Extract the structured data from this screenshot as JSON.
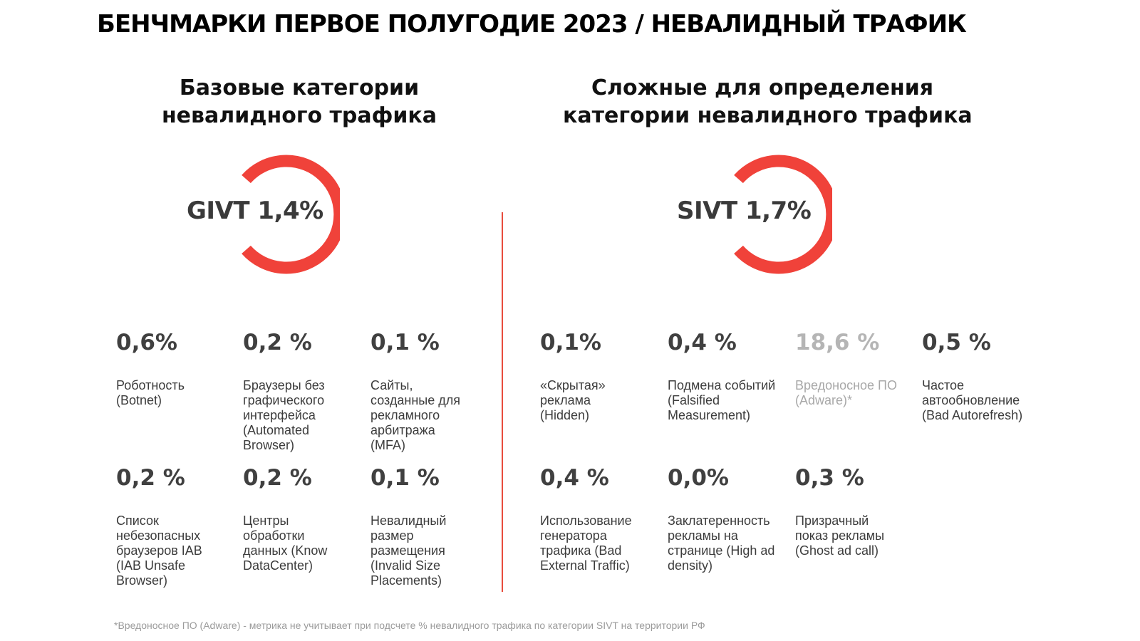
{
  "title": "БЕНЧМАРКИ ПЕРВОЕ ПОЛУГОДИЕ 2023 / НЕВАЛИДНЫЙ ТРАФИК",
  "left": {
    "heading": [
      "Базовые категории",
      "невалидного трафика"
    ],
    "total_label": "GIVT 1,4%",
    "metrics": [
      {
        "value": "0,6%",
        "label": [
          "Роботность",
          "(Botnet)"
        ]
      },
      {
        "value": "0,2 %",
        "label": [
          "Браузеры без",
          "графического",
          "интерфейса",
          "(Automated",
          "Browser)"
        ]
      },
      {
        "value": "0,1 %",
        "label": [
          "Сайты,",
          "созданные для",
          "рекламного",
          "арбитража",
          "(MFA)"
        ]
      },
      {
        "value": "0,2 %",
        "label": [
          "Список",
          "небезопасных",
          "браузеров IAB",
          "(IAB Unsafe",
          "Browser)"
        ]
      },
      {
        "value": "0,2 %",
        "label": [
          "Центры",
          "обработки",
          "данных (Know",
          "DataCenter)"
        ]
      },
      {
        "value": "0,1 %",
        "label": [
          "Невалидный",
          "размер",
          "размещения",
          "(Invalid Size",
          "Placements)"
        ]
      }
    ]
  },
  "right": {
    "heading": [
      "Сложные для определения",
      "категории невалидного трафика"
    ],
    "total_label": "SIVT 1,7%",
    "metrics": [
      {
        "value": "0,1%",
        "label": [
          "«Скрытая»",
          "реклама",
          "(Hidden)"
        ]
      },
      {
        "value": "0,4 %",
        "label": [
          "Подмена событий",
          "(Falsified",
          "Measurement)"
        ]
      },
      {
        "value": "18,6 %",
        "label": [
          "Вредоносное ПО",
          "(Adware)*"
        ],
        "muted": true
      },
      {
        "value": "0,5 %",
        "label": [
          "Частое",
          "автообновление",
          "(Bad Autorefresh)"
        ]
      },
      {
        "value": "0,4 %",
        "label": [
          "Использование",
          "генератора",
          "трафика (Bad",
          "External Traffic)"
        ]
      },
      {
        "value": "0,0%",
        "label": [
          "Заклатеренность",
          "рекламы на",
          "странице (High ad",
          "density)"
        ]
      },
      {
        "value": "0,3 %",
        "label": [
          "Призрачный",
          "показ рекламы",
          "(Ghost ad call)"
        ]
      }
    ]
  },
  "footnote": "*Вредоносное ПО (Adware) - метрика не учитывает при подсчете % невалидного трафика по категории SIVT на территории РФ",
  "colors": {
    "accent": "#f0423a",
    "divider": "#e84c3d",
    "muted_text": "#a8a8a8"
  }
}
